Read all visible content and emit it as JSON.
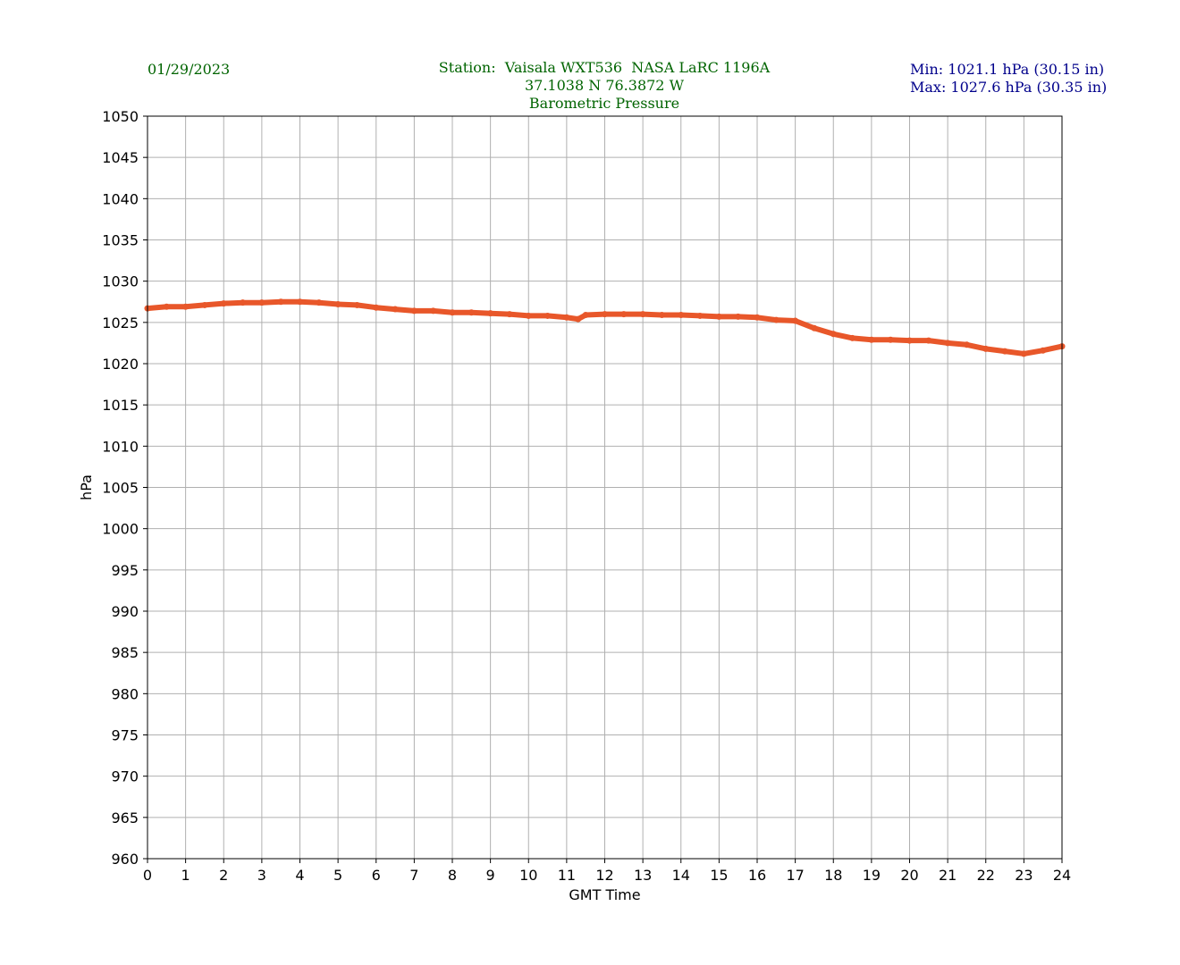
{
  "date": "01/29/2023",
  "title_lines": [
    "Station:  Vaisala WXT536  NASA LaRC 1196A",
    "37.1038 N 76.3872 W",
    "Barometric Pressure"
  ],
  "stats": {
    "min": "Min: 1021.1 hPa (30.15 in)",
    "max": "Max: 1027.6 hPa (30.35 in)"
  },
  "colors": {
    "line": "#e8572a",
    "grid": "#b0b0b0",
    "title": "#006400",
    "stats": "#00008b"
  },
  "chart_data": {
    "type": "line",
    "xlabel": "GMT Time",
    "ylabel": "hPa",
    "xlim": [
      0,
      24
    ],
    "ylim": [
      960,
      1050
    ],
    "xticks": [
      0,
      1,
      2,
      3,
      4,
      5,
      6,
      7,
      8,
      9,
      10,
      11,
      12,
      13,
      14,
      15,
      16,
      17,
      18,
      19,
      20,
      21,
      22,
      23,
      24
    ],
    "yticks": [
      960,
      965,
      970,
      975,
      980,
      985,
      990,
      995,
      1000,
      1005,
      1010,
      1015,
      1020,
      1025,
      1030,
      1035,
      1040,
      1045,
      1050
    ],
    "grid": true,
    "series": [
      {
        "x": [
          0,
          0.5,
          1,
          1.5,
          2,
          2.5,
          3,
          3.5,
          4,
          4.5,
          5,
          5.5,
          6,
          6.5,
          7,
          7.5,
          8,
          8.5,
          9,
          9.5,
          10,
          10.5,
          11,
          11.3,
          11.5,
          12,
          12.5,
          13,
          13.5,
          14,
          14.5,
          15,
          15.5,
          16,
          16.5,
          17,
          17.5,
          18,
          18.5,
          19,
          19.5,
          20,
          20.5,
          21,
          21.5,
          22,
          22.5,
          23,
          23.5,
          24
        ],
        "y": [
          1026.7,
          1026.9,
          1026.9,
          1027.1,
          1027.3,
          1027.4,
          1027.4,
          1027.5,
          1027.5,
          1027.4,
          1027.2,
          1027.1,
          1026.8,
          1026.6,
          1026.4,
          1026.4,
          1026.2,
          1026.2,
          1026.1,
          1026.0,
          1025.8,
          1025.8,
          1025.6,
          1025.4,
          1025.9,
          1026.0,
          1026.0,
          1026.0,
          1025.9,
          1025.9,
          1025.8,
          1025.7,
          1025.7,
          1025.6,
          1025.3,
          1025.2,
          1024.3,
          1023.6,
          1023.1,
          1022.9,
          1022.9,
          1022.8,
          1022.8,
          1022.5,
          1022.3,
          1021.8,
          1021.5,
          1021.2,
          1021.6,
          1022.1
        ]
      }
    ]
  }
}
